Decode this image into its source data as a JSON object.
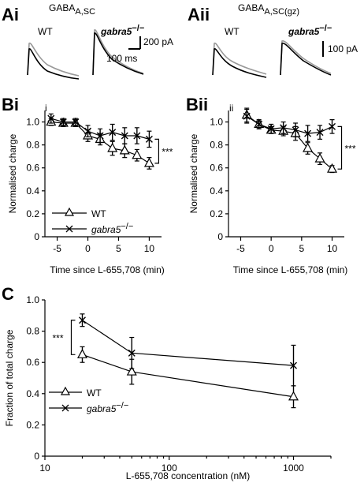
{
  "panels": {
    "Ai": {
      "label": "Ai",
      "title_main": "GABA",
      "title_sub": "A,SC",
      "wt": "WT",
      "ko": "gabra5",
      "ko_sup": "−/−",
      "scale_y": "200 pA",
      "scale_x": "100 ms"
    },
    "Aii": {
      "label": "Aii",
      "title_main": "GABA",
      "title_sub": "A,SC(gz)",
      "wt": "WT",
      "ko": "gabra5",
      "ko_sup": "−/−",
      "scale_y": "100 pA"
    },
    "Bi": {
      "label": "Bi",
      "inner": "i"
    },
    "Bii": {
      "label": "Bii",
      "inner": "ii"
    },
    "C": {
      "label": "C"
    }
  },
  "legend": {
    "wt": "WT",
    "ko": "gabra5",
    "ko_sup": "−/−"
  },
  "significance": "***",
  "chart_data": [
    {
      "id": "Bi",
      "type": "line",
      "xlabel": "Time since L-655,708 (min)",
      "ylabel": "Normalised charge",
      "xlim": [
        -7,
        12
      ],
      "ylim": [
        0,
        1.1
      ],
      "xticks": [
        -5,
        0,
        5,
        10
      ],
      "yticks": [
        0,
        0.2,
        0.4,
        0.6,
        0.8,
        1.0
      ],
      "series": [
        {
          "name": "WT",
          "marker": "triangle",
          "x": [
            -6,
            -4,
            -2,
            0,
            2,
            4,
            6,
            8,
            10
          ],
          "y": [
            1.0,
            0.99,
            0.99,
            0.88,
            0.85,
            0.77,
            0.75,
            0.71,
            0.64
          ],
          "err": [
            0.03,
            0.03,
            0.03,
            0.05,
            0.05,
            0.06,
            0.06,
            0.05,
            0.05
          ]
        },
        {
          "name": "gabra5−/−",
          "marker": "cross",
          "x": [
            -6,
            -4,
            -2,
            0,
            2,
            4,
            6,
            8,
            10
          ],
          "y": [
            1.03,
            1.0,
            1.0,
            0.92,
            0.88,
            0.91,
            0.88,
            0.88,
            0.85
          ],
          "err": [
            0.04,
            0.03,
            0.03,
            0.05,
            0.06,
            0.07,
            0.07,
            0.07,
            0.07
          ]
        }
      ],
      "annotation": "***"
    },
    {
      "id": "Bii",
      "type": "line",
      "xlabel": "Time since L-655,708 (min)",
      "ylabel": "Normalised charge",
      "xlim": [
        -7,
        12
      ],
      "ylim": [
        0,
        1.1
      ],
      "xticks": [
        -5,
        0,
        5,
        10
      ],
      "yticks": [
        0,
        0.2,
        0.4,
        0.6,
        0.8,
        1.0
      ],
      "series": [
        {
          "name": "WT",
          "marker": "triangle",
          "x": [
            -4,
            -2,
            0,
            2,
            4,
            6,
            8,
            10
          ],
          "y": [
            1.06,
            0.98,
            0.93,
            0.92,
            0.9,
            0.77,
            0.68,
            0.59
          ],
          "err": [
            0.06,
            0.03,
            0.03,
            0.04,
            0.06,
            0.05,
            0.05,
            0.03
          ]
        },
        {
          "name": "gabra5−/−",
          "marker": "cross",
          "x": [
            -4,
            -2,
            0,
            2,
            4,
            6,
            8,
            10
          ],
          "y": [
            1.05,
            0.98,
            0.94,
            0.95,
            0.93,
            0.9,
            0.91,
            0.96
          ],
          "err": [
            0.06,
            0.04,
            0.04,
            0.05,
            0.06,
            0.07,
            0.06,
            0.06
          ]
        }
      ],
      "annotation": "***"
    },
    {
      "id": "C",
      "type": "line",
      "xlabel": "L-655,708 concentration (nM)",
      "ylabel": "Fraction of total charge",
      "xscale": "log",
      "xlim": [
        10,
        2000
      ],
      "ylim": [
        0,
        1.0
      ],
      "xticks": [
        10,
        100,
        1000
      ],
      "yticks": [
        0,
        0.2,
        0.4,
        0.6,
        0.8,
        1.0
      ],
      "series": [
        {
          "name": "WT",
          "marker": "triangle",
          "x": [
            20,
            50,
            1000
          ],
          "y": [
            0.65,
            0.54,
            0.38
          ],
          "err": [
            0.05,
            0.08,
            0.07
          ]
        },
        {
          "name": "gabra5−/−",
          "marker": "cross",
          "x": [
            20,
            50,
            1000
          ],
          "y": [
            0.87,
            0.66,
            0.58
          ],
          "err": [
            0.04,
            0.1,
            0.13
          ]
        }
      ],
      "annotation": "***"
    }
  ]
}
